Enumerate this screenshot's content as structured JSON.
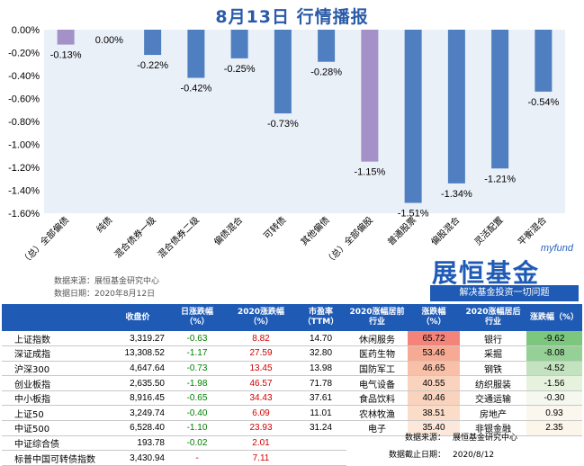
{
  "title": "8月13日  行情播报",
  "chart_data": {
    "type": "bar",
    "categories": [
      "（总）全部偏债",
      "纯债",
      "混合债券一级",
      "混合债券二级",
      "偏债混合",
      "可转债",
      "其他偏债",
      "（总）全部偏股",
      "普通股票",
      "偏股混合",
      "灵活配置",
      "平衡混合"
    ],
    "values": [
      -0.13,
      0.0,
      -0.22,
      -0.42,
      -0.25,
      -0.73,
      -0.28,
      -1.15,
      -1.51,
      -1.34,
      -1.21,
      -0.54
    ],
    "data_labels": [
      "-0.13%",
      "0.00%",
      "-0.22%",
      "-0.42%",
      "-0.25%",
      "-0.73%",
      "-0.28%",
      "-1.15%",
      "-1.51%",
      "-1.34%",
      "-1.21%",
      "-0.54%"
    ],
    "bar_colors": [
      "#a491c8",
      "#4f7fc0",
      "#4f7fc0",
      "#4f7fc0",
      "#4f7fc0",
      "#4f7fc0",
      "#4f7fc0",
      "#a491c8",
      "#4f7fc0",
      "#4f7fc0",
      "#4f7fc0",
      "#4f7fc0"
    ],
    "yticks": [
      "0.00%",
      "-0.20%",
      "-0.40%",
      "-0.60%",
      "-0.80%",
      "-1.00%",
      "-1.20%",
      "-1.40%",
      "-1.60%"
    ],
    "ylim": [
      -1.6,
      0
    ],
    "plot_bg": "#eaf0f8",
    "grid": false,
    "legend": "none"
  },
  "source": {
    "line1": "数据来源：展恒基金研究中心",
    "line2": "数据日期：2020年8月12日"
  },
  "logo": {
    "en": "myfund",
    "cn": "展恒基金",
    "slogan": "解决基金投资一切问题"
  },
  "index_table": {
    "headers": [
      "",
      "收盘价",
      "日涨跌幅\n（%）",
      "2020涨跌幅\n（%）",
      "市盈率\n（TTM）"
    ],
    "rows": [
      {
        "name": "上证指数",
        "close": "3,319.27",
        "day": "-0.63",
        "ytd": "8.82",
        "pe": "14.70"
      },
      {
        "name": "深证成指",
        "close": "13,308.52",
        "day": "-1.17",
        "ytd": "27.59",
        "pe": "32.80"
      },
      {
        "name": "沪深300",
        "close": "4,647.64",
        "day": "-0.73",
        "ytd": "13.45",
        "pe": "13.98"
      },
      {
        "name": "创业板指",
        "close": "2,635.50",
        "day": "-1.98",
        "ytd": "46.57",
        "pe": "71.78"
      },
      {
        "name": "中小板指",
        "close": "8,916.45",
        "day": "-0.65",
        "ytd": "34.43",
        "pe": "37.61"
      },
      {
        "name": "上证50",
        "close": "3,249.74",
        "day": "-0.40",
        "ytd": "6.09",
        "pe": "11.01"
      },
      {
        "name": "中证500",
        "close": "6,528.40",
        "day": "-1.10",
        "ytd": "23.93",
        "pe": "31.24"
      },
      {
        "name": "中证综合债",
        "close": "193.78",
        "day": "-0.02",
        "ytd": "2.01",
        "pe": ""
      },
      {
        "name": "标普中国可转债指数",
        "close": "3,430.94",
        "day": "-",
        "ytd": "7.11",
        "pe": ""
      }
    ]
  },
  "sector_table": {
    "headers": [
      "2020涨幅居前\n行业",
      "涨跌幅\n（%）",
      "2020涨幅居后\n行业",
      "涨跌幅（%）"
    ],
    "rows": [
      {
        "top": "休闲服务",
        "top_val": "65.72",
        "top_bg": "#f4837a",
        "bottom": "银行",
        "bottom_val": "-9.62",
        "bottom_bg": "#7cc67e"
      },
      {
        "top": "医药生物",
        "top_val": "53.46",
        "top_bg": "#f6aa93",
        "bottom": "采掘",
        "bottom_val": "-8.08",
        "bottom_bg": "#95d096"
      },
      {
        "top": "国防军工",
        "top_val": "46.65",
        "top_bg": "#f8c0a8",
        "bottom": "钢铁",
        "bottom_val": "-4.52",
        "bottom_bg": "#c3e3c0"
      },
      {
        "top": "电气设备",
        "top_val": "40.55",
        "top_bg": "#f9d3bd",
        "bottom": "纺织服装",
        "bottom_val": "-1.56",
        "bottom_bg": "#e6f2dd"
      },
      {
        "top": "食品饮料",
        "top_val": "40.46",
        "top_bg": "#f9d3bd",
        "bottom": "交通运输",
        "bottom_val": "-0.30",
        "bottom_bg": "#f4f8ef"
      },
      {
        "top": "农林牧渔",
        "top_val": "38.51",
        "top_bg": "#fadcc8",
        "bottom": "房地产",
        "bottom_val": "0.93",
        "bottom_bg": "#fbf7ee"
      },
      {
        "top": "电子",
        "top_val": "35.40",
        "top_bg": "#fbe8da",
        "bottom": "非银金融",
        "bottom_val": "2.35",
        "bottom_bg": "#fcf5ea"
      }
    ],
    "footer": [
      {
        "key": "数据来源：",
        "value": "展恒基金研究中心"
      },
      {
        "key": "数据截止日期：",
        "value": "2020/8/12"
      }
    ]
  }
}
